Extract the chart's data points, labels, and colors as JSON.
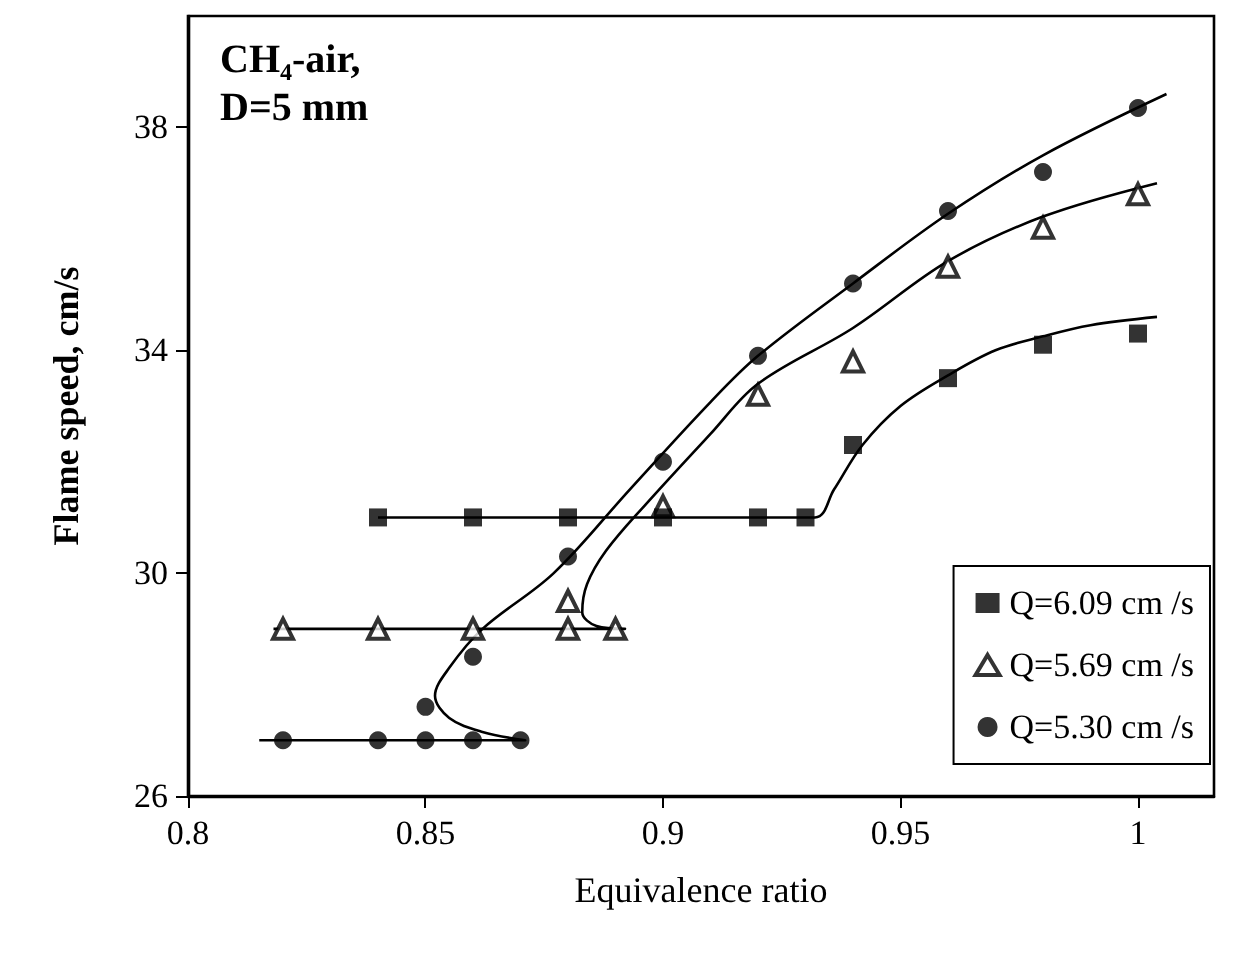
{
  "chart_data": {
    "type": "scatter",
    "xlabel": "Equivalence ratio",
    "ylabel": "Flame speed, cm/s",
    "annotations": [
      "CH₄-air,",
      "D=5 mm"
    ],
    "xlim": [
      0.8,
      1.016
    ],
    "xticks": [
      0.8,
      0.85,
      0.9,
      0.95,
      1
    ],
    "ylim": [
      26,
      40
    ],
    "yticks": [
      26,
      30,
      34,
      38
    ],
    "grid": false,
    "legend": "bottom right",
    "series": [
      {
        "name": "Q=6.09 cm /s",
        "color": "#000000",
        "marker": "square",
        "x": [
          0.84,
          0.86,
          0.88,
          0.9,
          0.92,
          0.93,
          0.94,
          0.96,
          0.98,
          1.0
        ],
        "values": [
          31,
          31,
          31,
          31,
          31,
          31,
          32.3,
          33.5,
          34.1,
          34.3
        ]
      },
      {
        "name": "Q=5.69 cm /s",
        "color": "#000000",
        "marker": "triangle",
        "x": [
          0.82,
          0.84,
          0.86,
          0.88,
          0.89,
          0.88,
          0.9,
          0.92,
          0.94,
          0.96,
          0.98,
          1.0
        ],
        "values": [
          29,
          29,
          29,
          29,
          29,
          29.5,
          31.2,
          33.2,
          33.8,
          35.5,
          36.2,
          36.8
        ]
      },
      {
        "name": "Q=5.30 cm /s",
        "color": "#000000",
        "marker": "circle",
        "x": [
          0.82,
          0.84,
          0.85,
          0.86,
          0.87,
          0.85,
          0.86,
          0.88,
          0.9,
          0.92,
          0.94,
          0.96,
          0.98,
          1.0
        ],
        "values": [
          27,
          27,
          27,
          27,
          27,
          27.6,
          28.5,
          30.3,
          32,
          33.9,
          35.2,
          36.5,
          37.2,
          38.35
        ]
      },
      {
        "type": "line",
        "color": "#000000",
        "marker": "none",
        "x": [
          0.84,
          0.932,
          0.936,
          0.942,
          0.95,
          0.96,
          0.97,
          0.98,
          0.99,
          1.004
        ],
        "values": [
          31,
          31,
          31.5,
          32.3,
          33,
          33.55,
          34,
          34.25,
          34.45,
          34.6
        ]
      },
      {
        "type": "line",
        "color": "#000000",
        "marker": "none",
        "x": [
          0.818,
          0.892,
          0.886,
          0.883,
          0.884,
          0.888,
          0.896,
          0.91,
          0.92,
          0.94,
          0.96,
          0.98,
          1.004
        ],
        "values": [
          29,
          29,
          29.05,
          29.3,
          29.8,
          30.4,
          31.2,
          32.5,
          33.4,
          34.4,
          35.6,
          36.4,
          37
        ]
      },
      {
        "type": "line",
        "color": "#000000",
        "marker": "none",
        "x": [
          0.815,
          0.871,
          0.862,
          0.855,
          0.852,
          0.855,
          0.862,
          0.877,
          0.893,
          0.91,
          0.92,
          0.94,
          0.96,
          0.98,
          1.006
        ],
        "values": [
          27,
          27,
          27.15,
          27.4,
          27.8,
          28.3,
          29,
          30,
          31.5,
          33.07,
          33.9,
          35.2,
          36.45,
          37.5,
          38.6
        ]
      }
    ]
  }
}
